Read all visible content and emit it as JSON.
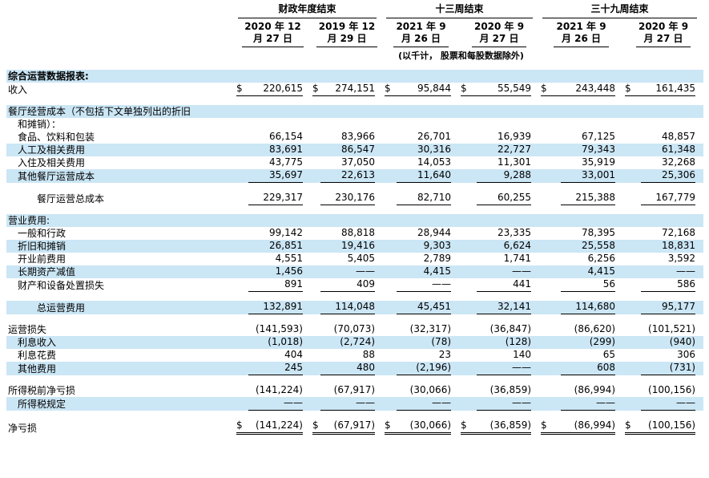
{
  "header": {
    "groups": [
      {
        "label": "财政年度结束"
      },
      {
        "label": "十三周结束"
      },
      {
        "label": "三十九周结束"
      }
    ],
    "columns": [
      {
        "line1": "2020 年 12",
        "line2": "月 27 日"
      },
      {
        "line1": "2019 年 12",
        "line2": "月 29 日"
      },
      {
        "line1": "2021 年 9",
        "line2": "月 26 日"
      },
      {
        "line1": "2020 年 9",
        "line2": "月 27 日"
      },
      {
        "line1": "2021 年 9",
        "line2": "月 26 日"
      },
      {
        "line1": "2020 年 9",
        "line2": "月 27 日"
      }
    ],
    "note": "(以千计， 股票和每股数据除外)"
  },
  "colors": {
    "stripe": "#cbe6f5",
    "rule": "#000000"
  },
  "rows": [
    {
      "type": "label",
      "label": "综合运营数据报表:",
      "bold": true,
      "indent": 0,
      "stripe": true
    },
    {
      "type": "data",
      "label": "收入",
      "indent": 0,
      "stripe": false,
      "dollar": true,
      "underline": "single",
      "values": [
        "220,615",
        "274,151",
        "95,844",
        "55,549",
        "243,448",
        "161,435"
      ]
    },
    {
      "type": "spacer",
      "stripe": false
    },
    {
      "type": "label",
      "label": "餐厅经营成本（不包括下文单独列出的折旧",
      "indent": 0,
      "stripe": true
    },
    {
      "type": "label",
      "label": "和摊销）：",
      "indent": 1,
      "stripe": false
    },
    {
      "type": "data",
      "label": "食品、饮料和包装",
      "indent": 1,
      "stripe": false,
      "values": [
        "66,154",
        "83,966",
        "26,701",
        "16,939",
        "67,125",
        "48,857"
      ]
    },
    {
      "type": "data",
      "label": "人工及相关费用",
      "indent": 1,
      "stripe": true,
      "values": [
        "83,691",
        "86,547",
        "30,316",
        "22,727",
        "79,343",
        "61,348"
      ]
    },
    {
      "type": "data",
      "label": "入住及相关费用",
      "indent": 1,
      "stripe": false,
      "values": [
        "43,775",
        "37,050",
        "14,053",
        "11,301",
        "35,919",
        "32,268"
      ]
    },
    {
      "type": "data",
      "label": "其他餐厅运营成本",
      "indent": 1,
      "stripe": true,
      "underline": "single",
      "values": [
        "35,697",
        "22,613",
        "11,640",
        "9,288",
        "33,001",
        "25,306"
      ]
    },
    {
      "type": "spacer",
      "stripe": false
    },
    {
      "type": "data",
      "label": "餐厅运营总成本",
      "indent": 2,
      "stripe": false,
      "underline": "single",
      "values": [
        "229,317",
        "230,176",
        "82,710",
        "60,255",
        "215,388",
        "167,779"
      ]
    },
    {
      "type": "spacer",
      "stripe": false
    },
    {
      "type": "label",
      "label": "营业费用:",
      "indent": 0,
      "stripe": true
    },
    {
      "type": "data",
      "label": "一般和行政",
      "indent": 1,
      "stripe": false,
      "values": [
        "99,142",
        "88,818",
        "28,944",
        "23,335",
        "78,395",
        "72,168"
      ]
    },
    {
      "type": "data",
      "label": "折旧和摊销",
      "indent": 1,
      "stripe": true,
      "values": [
        "26,851",
        "19,416",
        "9,303",
        "6,624",
        "25,558",
        "18,831"
      ]
    },
    {
      "type": "data",
      "label": "开业前费用",
      "indent": 1,
      "stripe": false,
      "values": [
        "4,551",
        "5,405",
        "2,789",
        "1,741",
        "6,256",
        "3,592"
      ]
    },
    {
      "type": "data",
      "label": "长期资产减值",
      "indent": 1,
      "stripe": true,
      "values": [
        "1,456",
        "——",
        "4,415",
        "——",
        "4,415",
        "——"
      ]
    },
    {
      "type": "data",
      "label": "财产和设备处置损失",
      "indent": 1,
      "stripe": false,
      "underline": "single",
      "values": [
        "891",
        "409",
        "——",
        "441",
        "56",
        "586"
      ]
    },
    {
      "type": "spacer",
      "stripe": false
    },
    {
      "type": "data",
      "label": "总运营费用",
      "indent": 2,
      "stripe": true,
      "underline": "single",
      "values": [
        "132,891",
        "114,048",
        "45,451",
        "32,141",
        "114,680",
        "95,177"
      ]
    },
    {
      "type": "spacer",
      "stripe": false
    },
    {
      "type": "data",
      "label": "运营损失",
      "indent": 0,
      "stripe": false,
      "values": [
        "(141,593)",
        "(70,073)",
        "(32,317)",
        "(36,847)",
        "(86,620)",
        "(101,521)"
      ]
    },
    {
      "type": "data",
      "label": "利息收入",
      "indent": 1,
      "stripe": true,
      "values": [
        "(1,018)",
        "(2,724)",
        "(78)",
        "(128)",
        "(299)",
        "(940)"
      ]
    },
    {
      "type": "data",
      "label": "利息花费",
      "indent": 1,
      "stripe": false,
      "values": [
        "404",
        "88",
        "23",
        "140",
        "65",
        "306"
      ]
    },
    {
      "type": "data",
      "label": "其他费用",
      "indent": 1,
      "stripe": true,
      "underline": "single",
      "values": [
        "245",
        "480",
        "(2,196)",
        "——",
        "608",
        "(731)"
      ]
    },
    {
      "type": "spacer",
      "stripe": false
    },
    {
      "type": "data",
      "label": "所得税前净亏损",
      "indent": 0,
      "stripe": false,
      "values": [
        "(141,224)",
        "(67,917)",
        "(30,066)",
        "(36,859)",
        "(86,994)",
        "(100,156)"
      ]
    },
    {
      "type": "data",
      "label": "所得税规定",
      "indent": 1,
      "stripe": true,
      "underline": "single",
      "values": [
        "——",
        "——",
        "——",
        "——",
        "——",
        "——"
      ]
    },
    {
      "type": "spacer",
      "stripe": false
    },
    {
      "type": "data",
      "label": "净亏损",
      "indent": 0,
      "stripe": false,
      "dollar": true,
      "underline": "double",
      "values": [
        "(141,224)",
        "(67,917)",
        "(30,066)",
        "(36,859)",
        "(86,994)",
        "(100,156)"
      ]
    }
  ]
}
